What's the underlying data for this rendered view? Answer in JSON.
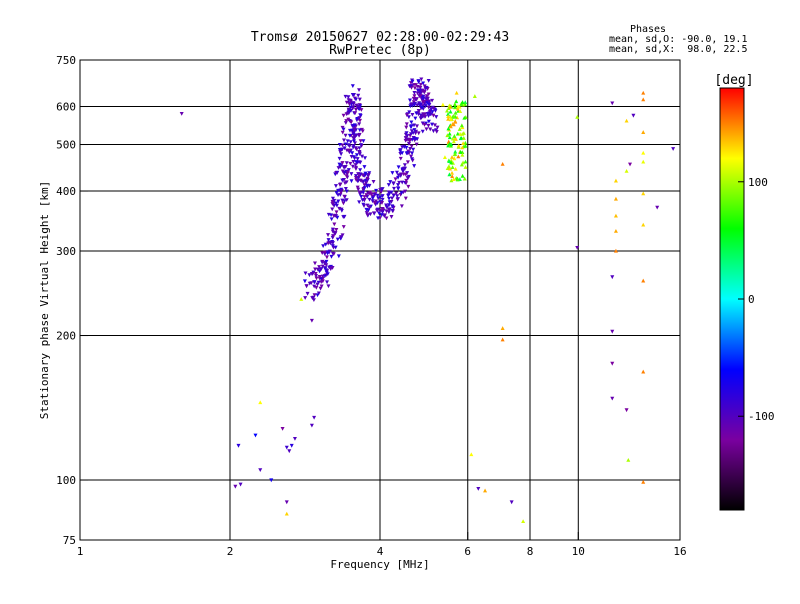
{
  "chart_data": {
    "type": "scatter",
    "title": "Tromsø 20150627 02:28:00-02:29:43",
    "subtitle": "RwPretec (8p)",
    "xlabel": "Frequency [MHz]",
    "ylabel": "Stationary phase Virtual Height [km]",
    "x_scale": "log",
    "y_scale": "log",
    "xlim": [
      1,
      16
    ],
    "ylim": [
      75,
      750
    ],
    "x_ticks": [
      1,
      2,
      4,
      6,
      8,
      10,
      16
    ],
    "x_tick_labels": [
      "1",
      "2",
      "4",
      "6",
      "8",
      "10",
      "16"
    ],
    "y_ticks": [
      75,
      100,
      200,
      300,
      400,
      500,
      600,
      750
    ],
    "y_tick_labels": [
      "75",
      "100",
      "200",
      "300",
      "400",
      "500",
      "600",
      "750"
    ],
    "grid": true,
    "stats": {
      "header": "Phases",
      "line_o": "mean, sd,O: -90.0, 19.1",
      "line_x": "mean, sd,X:  98.0, 22.5"
    },
    "colorbar": {
      "label": "[deg]",
      "range": [
        -180,
        180
      ],
      "ticks": [
        -100,
        0,
        100
      ],
      "tick_labels": [
        "-100",
        "0",
        "100"
      ],
      "colors": [
        "#000000",
        "#7a00a0",
        "#0000ff",
        "#00ffff",
        "#00ff00",
        "#ffff00",
        "#ff0000"
      ]
    },
    "series": [
      {
        "polarity": "O-mode",
        "marker": "triangle-down",
        "points": [
          [
            1.6,
            580,
            -110
          ],
          [
            2.05,
            97,
            -110
          ],
          [
            2.1,
            98,
            -100
          ],
          [
            2.08,
            118,
            -80
          ],
          [
            2.25,
            124,
            -60
          ],
          [
            2.3,
            105,
            -100
          ],
          [
            2.42,
            100,
            -70
          ],
          [
            2.55,
            128,
            -120
          ],
          [
            2.6,
            117,
            -90
          ],
          [
            2.63,
            115,
            -100
          ],
          [
            2.66,
            118,
            -80
          ],
          [
            2.7,
            122,
            -100
          ],
          [
            2.6,
            90,
            -110
          ],
          [
            2.95,
            135,
            -100
          ],
          [
            2.92,
            130,
            -100
          ],
          [
            2.92,
            215,
            -110
          ],
          [
            6.3,
            96,
            -100
          ],
          [
            7.35,
            90,
            -100
          ],
          [
            9.95,
            305,
            -110
          ],
          [
            11.7,
            610,
            -110
          ],
          [
            11.7,
            265,
            -100
          ],
          [
            11.7,
            204,
            -110
          ],
          [
            11.7,
            175,
            -120
          ],
          [
            11.7,
            148,
            -110
          ],
          [
            12.5,
            140,
            -120
          ],
          [
            12.7,
            455,
            -120
          ],
          [
            12.9,
            575,
            -100
          ],
          [
            14.4,
            370,
            -110
          ],
          [
            15.5,
            490,
            -100
          ]
        ]
      },
      {
        "polarity": "X-mode",
        "marker": "triangle-up",
        "points": [
          [
            2.78,
            238,
            110
          ],
          [
            2.3,
            145,
            120
          ],
          [
            2.6,
            85,
            130
          ],
          [
            5.7,
            640,
            130
          ],
          [
            5.35,
            605,
            120
          ],
          [
            5.4,
            470,
            115
          ],
          [
            5.5,
            450,
            100
          ],
          [
            6.1,
            113,
            120
          ],
          [
            6.2,
            630,
            100
          ],
          [
            6.5,
            95,
            140
          ],
          [
            7.05,
            455,
            150
          ],
          [
            7.05,
            207,
            140
          ],
          [
            7.05,
            196,
            150
          ],
          [
            7.75,
            82,
            110
          ],
          [
            9.95,
            570,
            100
          ],
          [
            11.9,
            420,
            130
          ],
          [
            11.9,
            385,
            140
          ],
          [
            11.9,
            355,
            135
          ],
          [
            11.9,
            330,
            140
          ],
          [
            11.9,
            300,
            150
          ],
          [
            12.5,
            560,
            130
          ],
          [
            12.5,
            440,
            110
          ],
          [
            12.6,
            110,
            100
          ],
          [
            13.5,
            640,
            150
          ],
          [
            13.5,
            620,
            150
          ],
          [
            13.5,
            530,
            140
          ],
          [
            13.5,
            480,
            120
          ],
          [
            13.5,
            460,
            115
          ],
          [
            13.5,
            395,
            130
          ],
          [
            13.5,
            340,
            130
          ],
          [
            13.5,
            260,
            150
          ],
          [
            13.5,
            168,
            150
          ],
          [
            13.5,
            99,
            150
          ]
        ]
      }
    ],
    "traces": [
      {
        "description_mode": "O-mode dense trace",
        "path": [
          [
            2.9,
            250
          ],
          [
            3.05,
            270
          ],
          [
            3.2,
            300
          ],
          [
            3.3,
            360
          ],
          [
            3.38,
            430
          ],
          [
            3.45,
            520
          ],
          [
            3.52,
            620
          ],
          [
            3.55,
            580
          ],
          [
            3.6,
            480
          ],
          [
            3.7,
            410
          ],
          [
            3.85,
            380
          ],
          [
            4.0,
            370
          ],
          [
            4.2,
            380
          ],
          [
            4.4,
            420
          ],
          [
            4.55,
            480
          ],
          [
            4.65,
            560
          ],
          [
            4.75,
            640
          ],
          [
            4.85,
            640
          ],
          [
            4.95,
            600
          ],
          [
            5.05,
            540
          ]
        ],
        "x_width": 0.03,
        "h_width": 0.06,
        "point_count": 700,
        "phase_range": [
          -120,
          -75
        ]
      },
      {
        "description_mode": "X-mode yellow cluster",
        "box": [
          [
            5.45,
            5.95
          ],
          [
            420,
            620
          ]
        ],
        "point_count": 110,
        "phase_range": [
          40,
          150
        ]
      }
    ]
  }
}
